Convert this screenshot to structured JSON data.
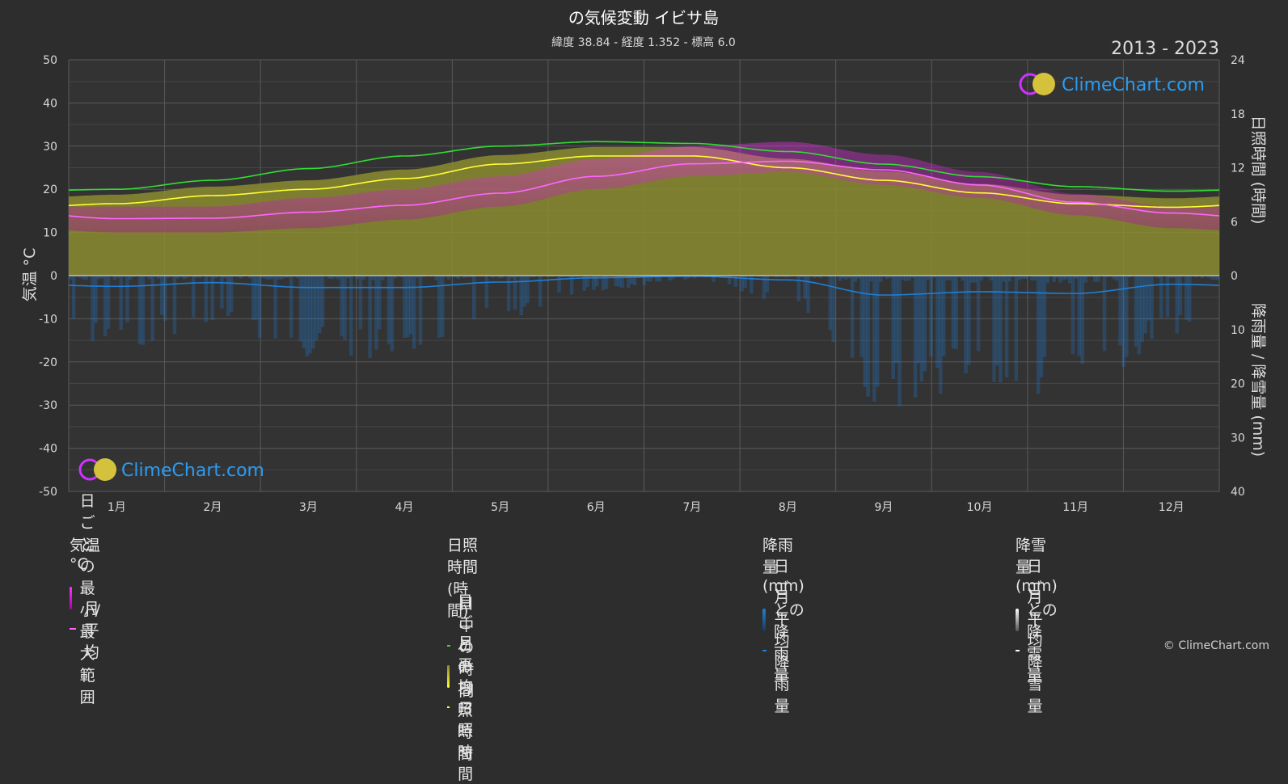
{
  "title": "の気候変動 イビサ島",
  "subtitle": "緯度 38.84 - 経度 1.352 - 標高 6.0",
  "year_range": "2013 - 2023",
  "watermark": "ClimeChart.com",
  "copyright": "© ClimeChart.com",
  "colors": {
    "background": "#2d2d2d",
    "grid": "#555555",
    "daylight": "#33dd33",
    "sunshine_mean": "#ffff33",
    "sunshine_fill": "#8c8c30",
    "temp_range": "#d020d0",
    "temp_mean": "#ff66ff",
    "rain": "#1f7fd6",
    "snow": "#ffffff",
    "logo_text": "#2a9df4"
  },
  "chart_data": {
    "type": "area",
    "title": "の気候変動 イビサ島",
    "subtitle": "緯度 38.84 - 経度 1.352 - 標高 6.0",
    "categories": [
      "1月",
      "2月",
      "3月",
      "4月",
      "5月",
      "6月",
      "7月",
      "8月",
      "9月",
      "10月",
      "11月",
      "12月"
    ],
    "y_left": {
      "label": "気温 °C",
      "range": [
        -50,
        50
      ],
      "ticks": [
        50,
        40,
        30,
        20,
        10,
        0,
        -10,
        -20,
        -30,
        -40,
        -50
      ]
    },
    "y_right_top": {
      "label": "日照時間 (時間)",
      "range": [
        0,
        24
      ],
      "ticks": [
        24,
        18,
        12,
        6,
        0
      ]
    },
    "y_right_bottom": {
      "label": "降雨量 / 降雪量 (mm)",
      "range": [
        0,
        40
      ],
      "ticks": [
        0,
        10,
        20,
        30,
        40
      ]
    },
    "grid": true,
    "series": [
      {
        "name": "日中の時間",
        "axis": "sunshine",
        "values": [
          9.6,
          10.6,
          11.9,
          13.3,
          14.4,
          14.9,
          14.7,
          13.8,
          12.4,
          11.0,
          9.9,
          9.4
        ]
      },
      {
        "name": "月平均日照時間",
        "axis": "sunshine",
        "values": [
          8.0,
          8.9,
          9.6,
          10.8,
          12.4,
          13.3,
          13.3,
          12.0,
          10.6,
          9.2,
          8.0,
          7.6
        ]
      },
      {
        "name": "月平均",
        "axis": "temperature",
        "values": [
          13.2,
          13.3,
          14.7,
          16.3,
          19.1,
          23.0,
          25.9,
          26.5,
          24.5,
          21.0,
          17.0,
          14.5
        ]
      },
      {
        "name": "月平均降雨量",
        "axis": "rain",
        "values": [
          2.0,
          1.3,
          2.2,
          2.2,
          1.2,
          0.4,
          0.1,
          0.8,
          3.6,
          3.0,
          3.3,
          1.6
        ]
      },
      {
        "name": "月平均降雪量",
        "axis": "snow",
        "values": [
          0,
          0,
          0,
          0,
          0,
          0,
          0,
          0,
          0,
          0,
          0,
          0
        ]
      }
    ],
    "temp_min": [
      10,
      10,
      11,
      13,
      16,
      20,
      23,
      24,
      21,
      18,
      14,
      11
    ],
    "temp_max": [
      16,
      16,
      18,
      20,
      23,
      27,
      30,
      31,
      28,
      24,
      19,
      16
    ]
  },
  "legend": {
    "temperature": {
      "title": "気温 °C",
      "range_label": "日ごとの最小/最大範囲",
      "mean_label": "月平均"
    },
    "sunshine": {
      "title": "日照時間 (時間)",
      "daylight_label": "日中の時間",
      "daily_label": "日ごとの日照時間",
      "mean_label": "月平均日照時間"
    },
    "rain": {
      "title": "降雨量 (mm)",
      "daily_label": "日ごとの降雨量",
      "mean_label": "月平均降雨量"
    },
    "snow": {
      "title": "降雪量 (mm)",
      "daily_label": "日ごとの降雪量",
      "mean_label": "月平均降雪量"
    }
  }
}
